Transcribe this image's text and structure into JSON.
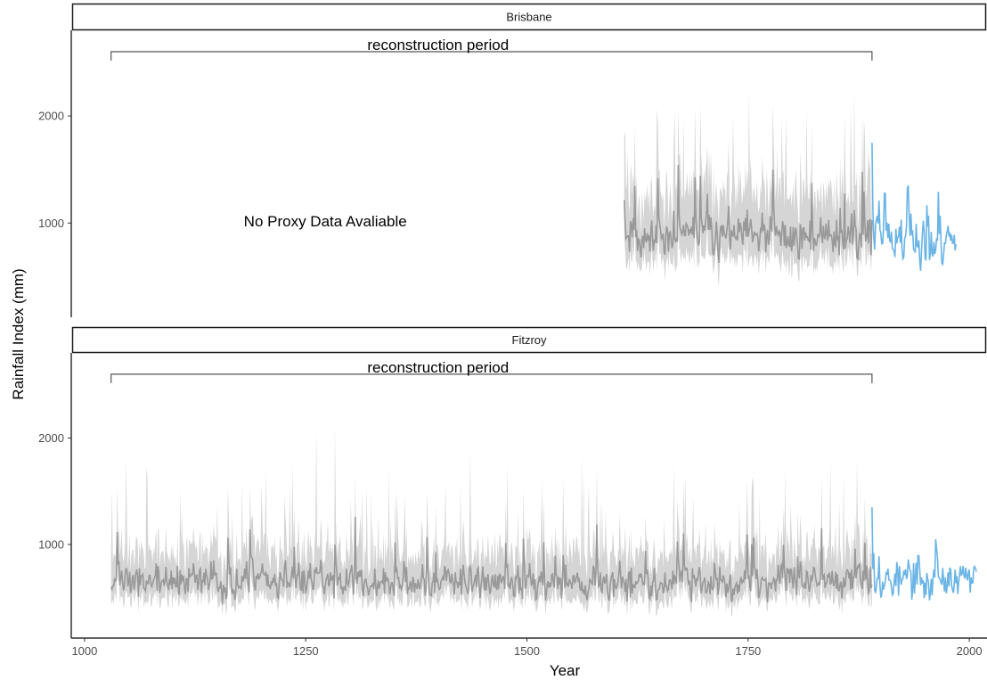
{
  "chart_data": {
    "type": "line",
    "xlabel": "Year",
    "ylabel": "Rainfall Index (mm)",
    "xlim": [
      985,
      2020
    ],
    "ylim": [
      120,
      2800
    ],
    "x_ticks": [
      1000,
      1250,
      1500,
      1750,
      2000
    ],
    "y_ticks": [
      1000,
      2000
    ],
    "grid": false,
    "colors": {
      "reconstruction": "#999999",
      "interval": "#d3d3d3",
      "instrumental": "#6ab4e6",
      "axis": "#000000",
      "bracket": "#555555"
    },
    "series_roles": [
      "reconstruction median",
      "reconstruction uncertainty band",
      "instrumental record"
    ],
    "panels": [
      {
        "strip_label": "Brisbane",
        "annotations": {
          "bracket_label": "reconstruction period",
          "bracket_x": [
            1030,
            1890
          ],
          "bracket_y": 2600,
          "note": "No Proxy Data Avaliable",
          "note_x": 1180,
          "note_y": 1020
        },
        "reconstruction": {
          "start": 1610,
          "end": 1890,
          "base": 870,
          "noise": 160,
          "spike_prob": 0.09,
          "spike_scale": 650,
          "band_width": 0.45,
          "seed": 11
        },
        "instrumental": {
          "start": 1890,
          "end": 1985,
          "base": 830,
          "noise": 190,
          "spike_prob": 0.1,
          "spike_scale": 600,
          "seed": 23,
          "first_value": 1750
        }
      },
      {
        "strip_label": "Fitzroy",
        "annotations": {
          "bracket_label": "reconstruction period",
          "bracket_x": [
            1030,
            1890
          ],
          "bracket_y": 2600
        },
        "reconstruction": {
          "start": 1030,
          "end": 1890,
          "base": 650,
          "noise": 130,
          "spike_prob": 0.05,
          "spike_scale": 500,
          "band_width": 0.42,
          "seed": 37
        },
        "instrumental": {
          "start": 1890,
          "end": 2008,
          "base": 660,
          "noise": 150,
          "spike_prob": 0.07,
          "spike_scale": 400,
          "seed": 53,
          "first_value": 1350
        }
      }
    ]
  }
}
